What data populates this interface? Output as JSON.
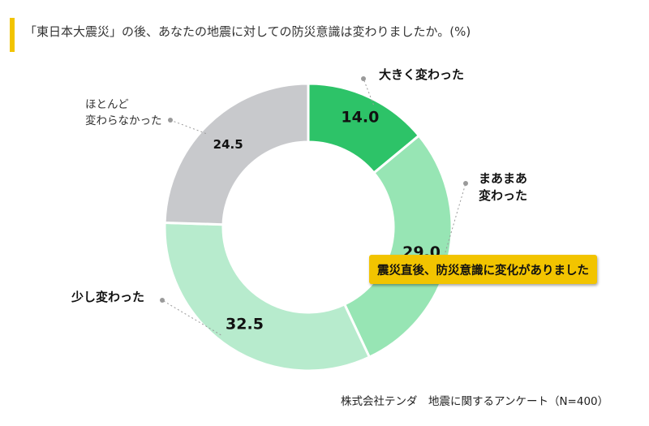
{
  "header": {
    "title": "「東日本大震災」の後、あなたの地震に対しての防災意識は変わりましたか。(%)",
    "accent_color": "#f2c400"
  },
  "chart_data": {
    "type": "pie",
    "variant": "donut",
    "title": "「東日本大震災」の後、あなたの地震に対しての防災意識は変わりましたか。(%)",
    "unit": "%",
    "start": "top, clockwise",
    "slices": [
      {
        "label": "大きく変わった",
        "label_lines": [
          "大きく変わった"
        ],
        "value": 14.0,
        "display": "14.0",
        "color": "#2dc368"
      },
      {
        "label": "まあまあ変わった",
        "label_lines": [
          "まあまあ",
          "変わった"
        ],
        "value": 29.0,
        "display": "29.0",
        "color": "#97e5b4"
      },
      {
        "label": "少し変わった",
        "label_lines": [
          "少し変わった"
        ],
        "value": 32.5,
        "display": "32.5",
        "color": "#b7ebcd"
      },
      {
        "label": "ほとんど変わらなかった",
        "label_lines": [
          "ほとんど",
          "変わらなかった"
        ],
        "value": 24.5,
        "display": "24.5",
        "color": "#c8c9cc"
      }
    ],
    "annotation": "震災直後、防災意識に変化がありました",
    "annotation_color": "#f2c400",
    "source": "株式会社テンダ　地震に関するアンケート（N=400）"
  }
}
